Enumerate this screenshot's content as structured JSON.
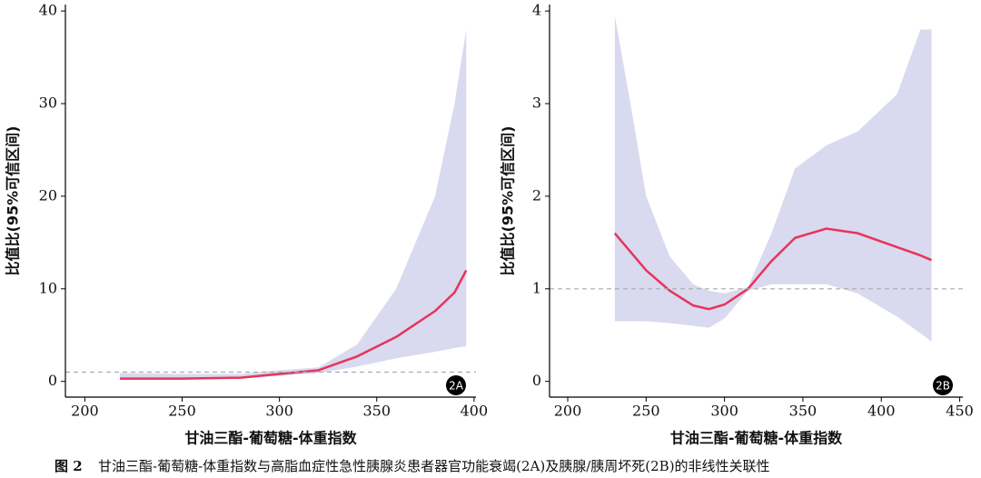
{
  "chart_data": [
    {
      "type": "line",
      "badge": "2A",
      "y_label": "比值比(95%可信区间)",
      "x_label": "甘油三酯-葡萄糖-体重指数",
      "x": [
        218,
        250,
        280,
        300,
        320,
        340,
        360,
        380,
        390,
        396
      ],
      "values": [
        0.3,
        0.3,
        0.4,
        0.8,
        1.2,
        2.7,
        4.8,
        7.6,
        9.6,
        12
      ],
      "ci_lower": [
        0.2,
        0.2,
        0.3,
        0.6,
        0.9,
        1.6,
        2.5,
        3.2,
        3.6,
        3.8
      ],
      "ci_upper": [
        0.9,
        0.8,
        0.8,
        1.2,
        1.5,
        4,
        10,
        20,
        30,
        38
      ],
      "reference": 1,
      "color": "#e8335a",
      "band_color": "#d9d9ef",
      "xlim": [
        190,
        401
      ],
      "xticks": [
        200,
        250,
        300,
        350,
        400
      ],
      "ylim": [
        -1.7,
        40.7
      ],
      "yticks": [
        0,
        10,
        20,
        30,
        40
      ]
    },
    {
      "type": "line",
      "badge": "2B",
      "y_label": "比值比(95%可信区间)",
      "x_label": "甘油三酯-葡萄糖-体重指数",
      "x": [
        230,
        240,
        250,
        265,
        280,
        290,
        300,
        315,
        330,
        345,
        365,
        385,
        410,
        425,
        432
      ],
      "values": [
        1.6,
        1.4,
        1.2,
        0.98,
        0.82,
        0.78,
        0.83,
        1.0,
        1.3,
        1.55,
        1.65,
        1.6,
        1.45,
        1.36,
        1.31
      ],
      "ci_lower": [
        0.65,
        0.65,
        0.65,
        0.63,
        0.6,
        0.58,
        0.68,
        0.98,
        1.05,
        1.05,
        1.05,
        0.95,
        0.7,
        0.52,
        0.43
      ],
      "ci_upper": [
        3.95,
        3.0,
        2.0,
        1.35,
        1.05,
        0.98,
        0.95,
        1.02,
        1.6,
        2.3,
        2.55,
        2.7,
        3.1,
        3.8,
        3.8
      ],
      "reference": 1,
      "color": "#e8335a",
      "band_color": "#d9d9ef",
      "xlim": [
        188.4,
        452
      ],
      "xticks": [
        200,
        250,
        300,
        350,
        400,
        450
      ],
      "ylim": [
        -0.17,
        4.07
      ],
      "yticks": [
        0,
        1,
        2,
        3,
        4
      ]
    }
  ],
  "caption": {
    "label": "图 2",
    "text": "甘油三酯-葡萄糖-体重指数与高脂血症性急性胰腺炎患者器官功能衰竭(2A)及胰腺/胰周坏死(2B)的非线性关联性"
  }
}
